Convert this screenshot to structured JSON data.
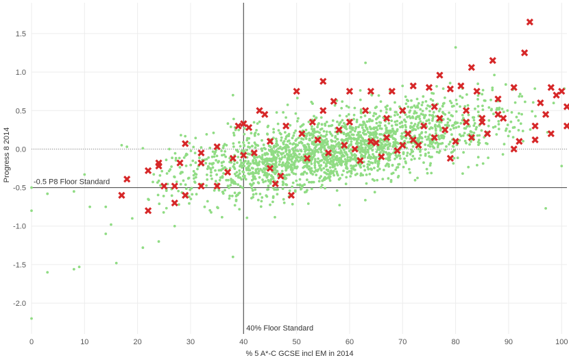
{
  "chart_data": {
    "type": "scatter",
    "xlabel": "% 5 A*-C GCSE incl EM in 2014",
    "ylabel": "Progress 8 2014",
    "xlim": [
      0,
      101
    ],
    "ylim": [
      -2.4,
      1.9
    ],
    "xticks": [
      "0",
      "10",
      "20",
      "30",
      "40",
      "50",
      "60",
      "70",
      "80",
      "90",
      "100"
    ],
    "yticks": [
      "-2.0",
      "-1.5",
      "-1.0",
      "-0.5",
      "0.0",
      "0.5",
      "1.0",
      "1.5"
    ],
    "grid": true,
    "reference_lines": [
      {
        "axis": "x",
        "value": 40,
        "label": "40% Floor Standard"
      },
      {
        "axis": "y",
        "value": -0.5,
        "label": "-0.5 P8 Floor Standard"
      },
      {
        "axis": "y",
        "value": 0,
        "label": ""
      }
    ],
    "colors": {
      "schools": "#90dc84",
      "below_floor_flag": "#d62728",
      "reference": "#555555"
    },
    "series": [
      {
        "marker": "circle",
        "color": "#90dc84",
        "points": [
          [
            0,
            -0.5
          ],
          [
            0,
            -0.8
          ],
          [
            0,
            -2.2
          ],
          [
            3,
            -0.58
          ],
          [
            3,
            -1.6
          ],
          [
            8,
            -0.55
          ],
          [
            8,
            -1.56
          ],
          [
            9,
            -1.53
          ],
          [
            10,
            -0.33
          ],
          [
            11,
            -0.75
          ],
          [
            14,
            -0.75
          ],
          [
            14,
            -1.1
          ],
          [
            15,
            -0.98
          ],
          [
            16,
            -1.48
          ],
          [
            17,
            0.05
          ],
          [
            18,
            0.03
          ],
          [
            19,
            -0.9
          ],
          [
            21,
            0.01
          ],
          [
            21,
            -1.28
          ],
          [
            22,
            -0.65
          ],
          [
            24,
            -1.2
          ],
          [
            26,
            0.0
          ],
          [
            27,
            -1.0
          ],
          [
            38,
            0.7
          ],
          [
            38,
            -1.4
          ],
          [
            63,
            1.12
          ],
          [
            80,
            1.32
          ],
          [
            97,
            -0.77
          ],
          [
            100,
            -0.22
          ]
        ],
        "cloud": {
          "count": 2200,
          "x_mean": 58,
          "x_sd": 15,
          "intercept": -0.74,
          "slope": 0.0128,
          "residual_sd": 0.23,
          "x_min": 22,
          "x_max": 101
        }
      },
      {
        "marker": "x",
        "color": "#d62728",
        "points": [
          [
            94,
            1.65
          ],
          [
            93,
            1.25
          ],
          [
            87,
            1.15
          ],
          [
            83,
            1.06
          ],
          [
            77,
            0.96
          ],
          [
            55,
            0.88
          ],
          [
            50,
            0.75
          ],
          [
            91,
            0.8
          ],
          [
            98,
            0.8
          ],
          [
            100,
            0.75
          ],
          [
            99,
            0.7
          ],
          [
            101,
            0.55
          ],
          [
            96,
            0.6
          ],
          [
            88,
            0.65
          ],
          [
            84,
            0.75
          ],
          [
            81,
            0.82
          ],
          [
            79,
            0.78
          ],
          [
            75,
            0.8
          ],
          [
            72,
            0.82
          ],
          [
            68,
            0.75
          ],
          [
            64,
            0.75
          ],
          [
            60,
            0.75
          ],
          [
            57,
            0.62
          ],
          [
            55,
            0.5
          ],
          [
            63,
            0.5
          ],
          [
            70,
            0.5
          ],
          [
            76,
            0.55
          ],
          [
            82,
            0.5
          ],
          [
            88,
            0.45
          ],
          [
            97,
            0.45
          ],
          [
            101,
            0.3
          ],
          [
            95,
            0.3
          ],
          [
            92,
            0.1
          ],
          [
            91,
            0.0
          ],
          [
            86,
            0.2
          ],
          [
            82,
            0.35
          ],
          [
            78,
            0.25
          ],
          [
            74,
            0.3
          ],
          [
            71,
            0.2
          ],
          [
            67,
            0.15
          ],
          [
            64,
            0.1
          ],
          [
            61,
            0.0
          ],
          [
            58,
            0.25
          ],
          [
            54,
            0.12
          ],
          [
            51,
            0.2
          ],
          [
            48,
            0.3
          ],
          [
            45,
            0.1
          ],
          [
            44,
            0.45
          ],
          [
            43,
            0.5
          ],
          [
            39,
            0.3
          ],
          [
            40,
            0.33
          ],
          [
            41,
            0.28
          ],
          [
            35,
            0.03
          ],
          [
            32,
            -0.05
          ],
          [
            29,
            0.07
          ],
          [
            32,
            -0.18
          ],
          [
            28,
            -0.18
          ],
          [
            24,
            -0.18
          ],
          [
            24,
            -0.22
          ],
          [
            22,
            -0.28
          ],
          [
            18,
            -0.39
          ],
          [
            17,
            -0.6
          ],
          [
            22,
            -0.8
          ],
          [
            25,
            -0.48
          ],
          [
            27,
            -0.48
          ],
          [
            27,
            -0.7
          ],
          [
            29,
            -0.6
          ],
          [
            32,
            -0.48
          ],
          [
            35,
            -0.48
          ],
          [
            37,
            -0.3
          ],
          [
            38,
            -0.12
          ],
          [
            40,
            -0.08
          ],
          [
            42,
            -0.05
          ],
          [
            45,
            -0.25
          ],
          [
            47,
            -0.35
          ],
          [
            46,
            -0.45
          ],
          [
            49,
            -0.6
          ],
          [
            52,
            -0.12
          ],
          [
            56,
            -0.05
          ],
          [
            59,
            0.05
          ],
          [
            62,
            -0.15
          ],
          [
            65,
            0.08
          ],
          [
            69,
            -0.02
          ],
          [
            72,
            0.12
          ],
          [
            80,
            0.1
          ],
          [
            85,
            0.4
          ],
          [
            77,
            0.4
          ],
          [
            67,
            0.4
          ],
          [
            60,
            0.35
          ],
          [
            53,
            0.35
          ],
          [
            66,
            -0.1
          ],
          [
            70,
            0.05
          ],
          [
            73,
            0.05
          ],
          [
            76,
            0.15
          ],
          [
            79,
            -0.12
          ],
          [
            83,
            0.15
          ],
          [
            85,
            0.35
          ],
          [
            89,
            0.4
          ],
          [
            95,
            0.12
          ],
          [
            98,
            0.2
          ]
        ]
      }
    ]
  }
}
